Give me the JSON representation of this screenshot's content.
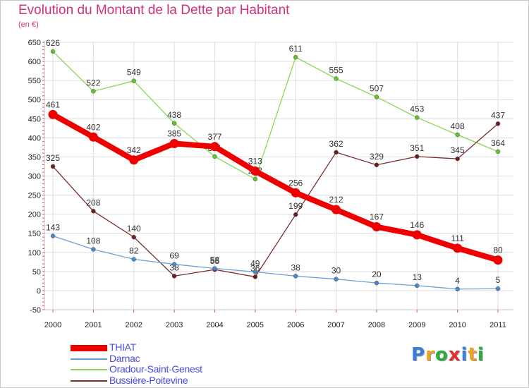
{
  "title": "Evolution du Montant de la Dette par Habitant",
  "subtitle": "(en €)",
  "logo": {
    "letters": [
      "P",
      "r",
      "o",
      "x",
      "i",
      "t",
      "i"
    ],
    "colors": [
      "#3a7fd5",
      "#f0a020",
      "#2aaa40",
      "#e03030",
      "#3a7fd5",
      "#f0a020",
      "#2aaa40"
    ]
  },
  "chart_data": {
    "type": "line",
    "x": [
      "2000",
      "2001",
      "2002",
      "2003",
      "2004",
      "2005",
      "2006",
      "2007",
      "2008",
      "2009",
      "2010",
      "2011"
    ],
    "ylim": [
      -50,
      650
    ],
    "yticks": [
      -50,
      0,
      50,
      100,
      150,
      200,
      250,
      300,
      350,
      400,
      450,
      500,
      550,
      600,
      650
    ],
    "grid": true,
    "legend_position": "bottom-left",
    "series": [
      {
        "name": "Oradour-Saint-Genest",
        "color": "#88d855",
        "marker": "#66c033",
        "values": [
          626,
          522,
          549,
          438,
          351,
          292,
          611,
          555,
          507,
          453,
          408,
          364
        ],
        "labels": [
          "626",
          "522",
          "549",
          "438",
          "351",
          "292",
          "611",
          "555",
          "507",
          "453",
          "408",
          "364"
        ]
      },
      {
        "name": "Bussière-Poitevine",
        "color": "#7a2e2e",
        "marker": "#6a1e1e",
        "values": [
          325,
          208,
          140,
          38,
          55,
          36,
          199,
          362,
          329,
          351,
          345,
          437
        ],
        "labels": [
          "325",
          "208",
          "140",
          "38",
          "55",
          "36",
          "199",
          "362",
          "329",
          "351",
          "345",
          "437"
        ]
      },
      {
        "name": "Darnac",
        "color": "#6aa0d8",
        "marker": "#4a88cc",
        "values": [
          143,
          108,
          82,
          69,
          58,
          49,
          38,
          30,
          20,
          13,
          4,
          5
        ],
        "labels": [
          "143",
          "108",
          "82",
          "69",
          "58",
          "49",
          "38",
          "30",
          "20",
          "13",
          "4",
          "5"
        ]
      },
      {
        "name": "THIAT",
        "color": "#ee0000",
        "marker": "#ee0000",
        "values": [
          461,
          402,
          342,
          385,
          377,
          313,
          256,
          212,
          167,
          146,
          111,
          80
        ],
        "labels": [
          "461",
          "402",
          "342",
          "385",
          "377",
          "313",
          "256",
          "212",
          "167",
          "146",
          "111",
          "80"
        ]
      }
    ]
  },
  "legend": [
    {
      "label": "THIAT",
      "color": "#ee0000",
      "thickness": 9
    },
    {
      "label": "Darnac",
      "color": "#6aa0d8",
      "thickness": 2
    },
    {
      "label": "Oradour-Saint-Genest",
      "color": "#88d855",
      "thickness": 2
    },
    {
      "label": "Bussière-Poitevine",
      "color": "#7a2e2e",
      "thickness": 2
    }
  ]
}
